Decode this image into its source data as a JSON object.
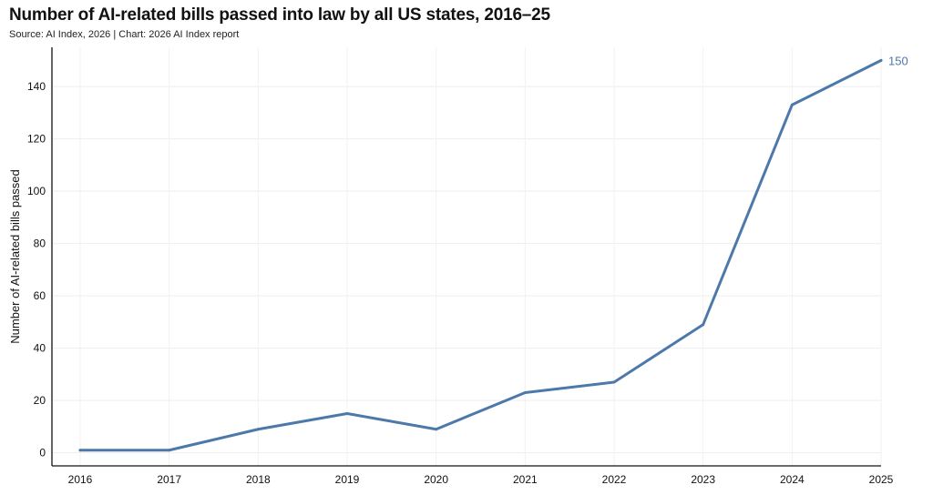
{
  "title": "Number of AI-related bills passed into law by all US states, 2016–25",
  "subtitle": "Source: AI Index, 2026 | Chart: 2026 AI Index report",
  "chart_data": {
    "type": "line",
    "title": "Number of AI-related bills passed into law by all US states, 2016–25",
    "subtitle": "Source: AI Index, 2026 | Chart: 2026 AI Index report",
    "xlabel": "",
    "ylabel": "Number of AI-related bills passed",
    "x": [
      2016,
      2017,
      2018,
      2019,
      2020,
      2021,
      2022,
      2023,
      2024,
      2025
    ],
    "series": [
      {
        "values": [
          1,
          1,
          9,
          15,
          9,
          23,
          27,
          49,
          133,
          150
        ],
        "color": "#4d79aa"
      }
    ],
    "end_label": "150",
    "ylim": [
      -5,
      155
    ],
    "yticks": [
      0,
      20,
      40,
      60,
      80,
      100,
      120,
      140
    ],
    "xticks": [
      "2016",
      "2017",
      "2018",
      "2019",
      "2020",
      "2021",
      "2022",
      "2023",
      "2024",
      "2025"
    ],
    "grid": true,
    "legend": "none"
  }
}
